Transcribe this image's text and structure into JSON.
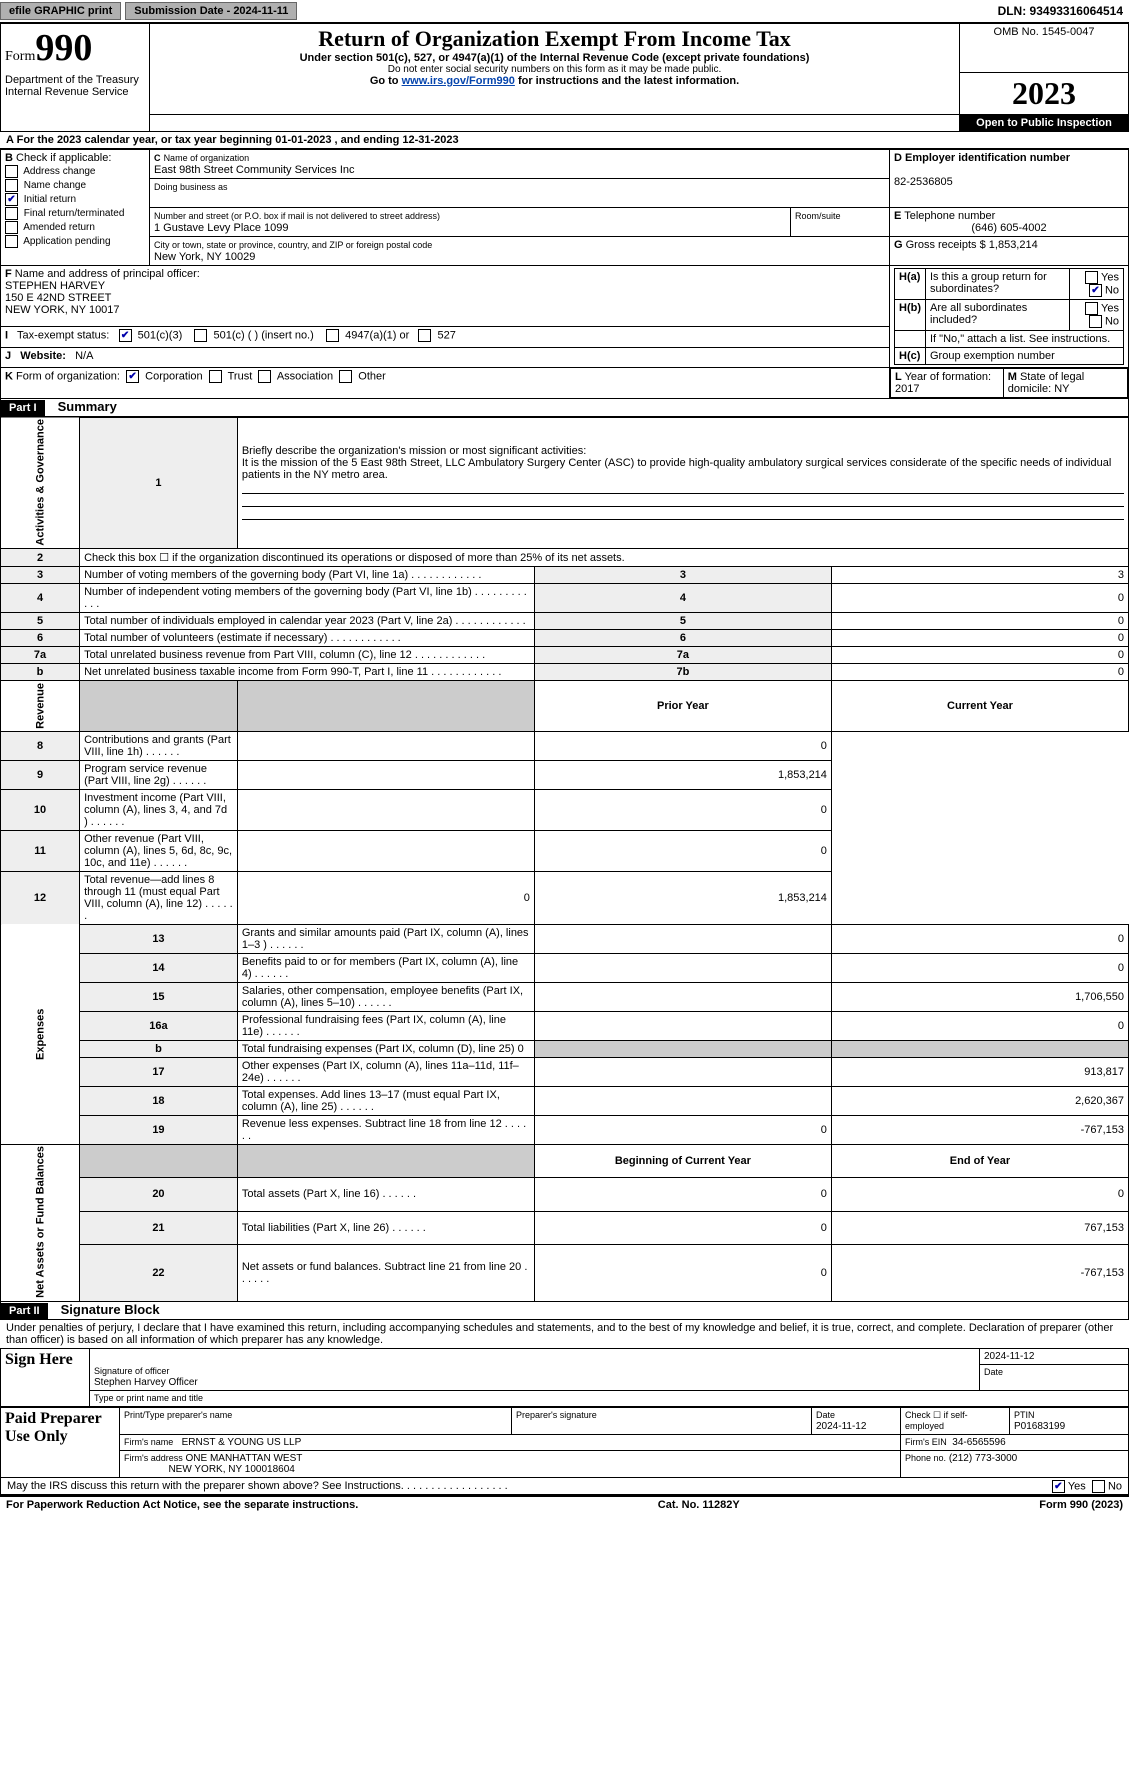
{
  "topbar": {
    "efile": "efile GRAPHIC print",
    "submission": "Submission Date - 2024-11-11",
    "dln": "DLN: 93493316064514"
  },
  "header": {
    "form_word": "Form",
    "form_num": "990",
    "title": "Return of Organization Exempt From Income Tax",
    "sub1": "Under section 501(c), 527, or 4947(a)(1) of the Internal Revenue Code (except private foundations)",
    "sub2": "Do not enter social security numbers on this form as it may be made public.",
    "sub3_pre": "Go to ",
    "sub3_link": "www.irs.gov/Form990",
    "sub3_post": " for instructions and the latest information.",
    "dept": "Department of the Treasury",
    "irs": "Internal Revenue Service",
    "omb": "OMB No. 1545-0047",
    "year": "2023",
    "open": "Open to Public Inspection"
  },
  "section_a": {
    "label_a": "A",
    "text": "For the 2023 calendar year, or tax year beginning 01-01-2023   , and ending 12-31-2023"
  },
  "box_b": {
    "label": "B",
    "caption": "Check if applicable:",
    "items": [
      "Address change",
      "Name change",
      "Initial return",
      "Final return/terminated",
      "Amended return",
      "Application pending"
    ],
    "checked_idx": 2
  },
  "box_c": {
    "label": "C",
    "name_lbl": "Name of organization",
    "name": "East 98th Street Community Services Inc",
    "dba_lbl": "Doing business as",
    "addr_lbl": "Number and street (or P.O. box if mail is not delivered to street address)",
    "room_lbl": "Room/suite",
    "addr": "1 Gustave Levy Place 1099",
    "city_lbl": "City or town, state or province, country, and ZIP or foreign postal code",
    "city": "New York, NY  10029"
  },
  "box_d": {
    "label": "D",
    "lbl": "Employer identification number",
    "val": "82-2536805"
  },
  "box_e": {
    "label": "E",
    "lbl": "Telephone number",
    "val": "(646) 605-4002"
  },
  "box_g": {
    "label": "G",
    "lbl": "Gross receipts $",
    "val": "1,853,214"
  },
  "box_f": {
    "label": "F",
    "lbl": "Name and address of principal officer:",
    "l1": "STEPHEN HARVEY",
    "l2": "150 E 42ND STREET",
    "l3": "NEW YORK, NY  10017"
  },
  "box_h": {
    "a_lbl": "H(a)",
    "a_txt": "Is this a group return for subordinates?",
    "b_lbl": "H(b)",
    "b_txt": "Are all subordinates included?",
    "b_note": "If \"No,\" attach a list. See instructions.",
    "c_lbl": "H(c)",
    "c_txt": "Group exemption number ",
    "yes": "Yes",
    "no": "No"
  },
  "box_i": {
    "label": "I",
    "lbl": "Tax-exempt status:",
    "o1": "501(c)(3)",
    "o2": "501(c) (  ) (insert no.)",
    "o3": "4947(a)(1) or",
    "o4": "527"
  },
  "box_j": {
    "label": "J",
    "lbl": "Website:",
    "val": "N/A"
  },
  "box_k": {
    "label": "K",
    "lbl": "Form of organization:",
    "o1": "Corporation",
    "o2": "Trust",
    "o3": "Association",
    "o4": "Other"
  },
  "box_l": {
    "label": "L",
    "lbl": "Year of formation:",
    "val": "2017"
  },
  "box_m": {
    "label": "M",
    "lbl": "State of legal domicile:",
    "val": "NY"
  },
  "part1": {
    "hdr": "Part I",
    "title": "Summary"
  },
  "q1": {
    "num": "1",
    "txt": "Briefly describe the organization's mission or most significant activities:",
    "ans": "It is the mission of the 5 East 98th Street, LLC Ambulatory Surgery Center (ASC) to provide high-quality ambulatory surgical services considerate of the specific needs of individual patients in the NY metro area."
  },
  "rows_ag": [
    {
      "n": "2",
      "t": "Check this box ☐ if the organization discontinued its operations or disposed of more than 25% of its net assets."
    },
    {
      "n": "3",
      "t": "Number of voting members of the governing body (Part VI, line 1a)",
      "box": "3",
      "v": "3"
    },
    {
      "n": "4",
      "t": "Number of independent voting members of the governing body (Part VI, line 1b)",
      "box": "4",
      "v": "0"
    },
    {
      "n": "5",
      "t": "Total number of individuals employed in calendar year 2023 (Part V, line 2a)",
      "box": "5",
      "v": "0"
    },
    {
      "n": "6",
      "t": "Total number of volunteers (estimate if necessary)",
      "box": "6",
      "v": "0"
    },
    {
      "n": "7a",
      "t": "Total unrelated business revenue from Part VIII, column (C), line 12",
      "box": "7a",
      "v": "0"
    },
    {
      "n": "b",
      "t": "Net unrelated business taxable income from Form 990-T, Part I, line 11",
      "box": "7b",
      "v": "0"
    }
  ],
  "col_hdrs": {
    "prior": "Prior Year",
    "curr": "Current Year",
    "begin": "Beginning of Current Year",
    "end": "End of Year"
  },
  "rev": {
    "label": "Revenue",
    "rows": [
      {
        "n": "8",
        "t": "Contributions and grants (Part VIII, line 1h)",
        "p": "",
        "c": "0"
      },
      {
        "n": "9",
        "t": "Program service revenue (Part VIII, line 2g)",
        "p": "",
        "c": "1,853,214"
      },
      {
        "n": "10",
        "t": "Investment income (Part VIII, column (A), lines 3, 4, and 7d )",
        "p": "",
        "c": "0"
      },
      {
        "n": "11",
        "t": "Other revenue (Part VIII, column (A), lines 5, 6d, 8c, 9c, 10c, and 11e)",
        "p": "",
        "c": "0"
      },
      {
        "n": "12",
        "t": "Total revenue—add lines 8 through 11 (must equal Part VIII, column (A), line 12)",
        "p": "0",
        "c": "1,853,214"
      }
    ]
  },
  "exp": {
    "label": "Expenses",
    "rows": [
      {
        "n": "13",
        "t": "Grants and similar amounts paid (Part IX, column (A), lines 1–3 )",
        "p": "",
        "c": "0"
      },
      {
        "n": "14",
        "t": "Benefits paid to or for members (Part IX, column (A), line 4)",
        "p": "",
        "c": "0"
      },
      {
        "n": "15",
        "t": "Salaries, other compensation, employee benefits (Part IX, column (A), lines 5–10)",
        "p": "",
        "c": "1,706,550"
      },
      {
        "n": "16a",
        "t": "Professional fundraising fees (Part IX, column (A), line 11e)",
        "p": "",
        "c": "0"
      },
      {
        "n": "b",
        "t": "Total fundraising expenses (Part IX, column (D), line 25) 0",
        "shade": true
      },
      {
        "n": "17",
        "t": "Other expenses (Part IX, column (A), lines 11a–11d, 11f–24e)",
        "p": "",
        "c": "913,817"
      },
      {
        "n": "18",
        "t": "Total expenses. Add lines 13–17 (must equal Part IX, column (A), line 25)",
        "p": "",
        "c": "2,620,367"
      },
      {
        "n": "19",
        "t": "Revenue less expenses. Subtract line 18 from line 12",
        "p": "0",
        "c": "-767,153"
      }
    ]
  },
  "net": {
    "label": "Net Assets or Fund Balances",
    "rows": [
      {
        "n": "20",
        "t": "Total assets (Part X, line 16)",
        "p": "0",
        "c": "0"
      },
      {
        "n": "21",
        "t": "Total liabilities (Part X, line 26)",
        "p": "0",
        "c": "767,153"
      },
      {
        "n": "22",
        "t": "Net assets or fund balances. Subtract line 21 from line 20",
        "p": "0",
        "c": "-767,153"
      }
    ]
  },
  "ag_label": "Activities & Governance",
  "part2": {
    "hdr": "Part II",
    "title": "Signature Block"
  },
  "penalties": "Under penalties of perjury, I declare that I have examined this return, including accompanying schedules and statements, and to the best of my knowledge and belief, it is true, correct, and complete. Declaration of preparer (other than officer) is based on all information of which preparer has any knowledge.",
  "sign": {
    "here": "Sign Here",
    "sig_lbl": "Signature of officer",
    "date": "2024-11-12",
    "date_lbl": "Date",
    "name": "Stephen Harvey  Officer",
    "name_lbl": "Type or print name and title"
  },
  "paid": {
    "lbl": "Paid Preparer Use Only",
    "print_lbl": "Print/Type preparer's name",
    "sig_lbl": "Preparer's signature",
    "date_lbl": "Date",
    "date": "2024-11-12",
    "check_lbl": "Check ☐ if self-employed",
    "ptin_lbl": "PTIN",
    "ptin": "P01683199",
    "firm_name_lbl": "Firm's name",
    "firm_name": "ERNST & YOUNG US LLP",
    "firm_ein_lbl": "Firm's EIN",
    "firm_ein": "34-6565596",
    "firm_addr_lbl": "Firm's address",
    "firm_addr1": "ONE MANHATTAN WEST",
    "firm_addr2": "NEW YORK, NY  100018604",
    "phone_lbl": "Phone no.",
    "phone": "(212) 773-3000"
  },
  "discuss": "May the IRS discuss this return with the preparer shown above? See Instructions.",
  "footer": {
    "l": "For Paperwork Reduction Act Notice, see the separate instructions.",
    "c": "Cat. No. 11282Y",
    "r": "Form 990 (2023)"
  }
}
